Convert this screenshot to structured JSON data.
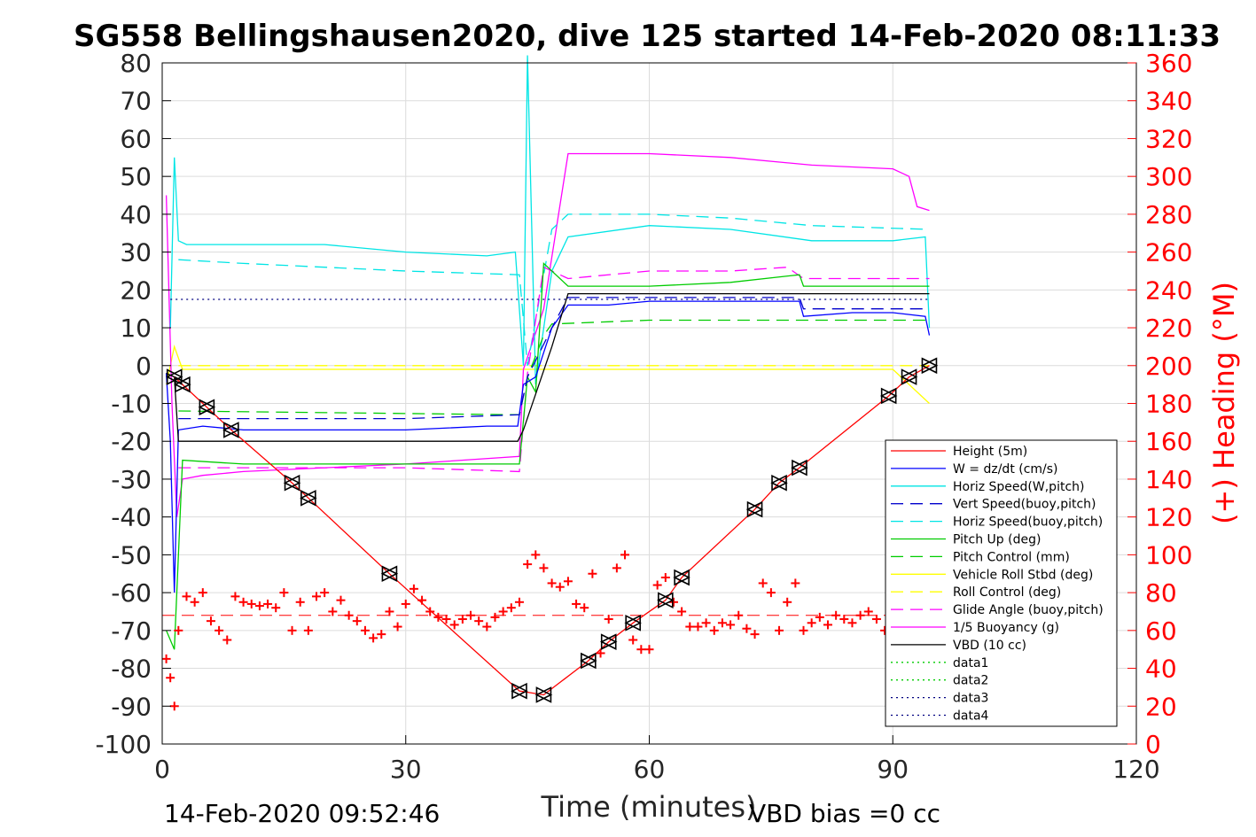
{
  "chart_data": {
    "type": "line",
    "title": "SG558 Bellingshausen2020, dive 125 started 14-Feb-2020 08:11:33",
    "xlabel": "Time (minutes)",
    "ylabel": "",
    "y2label": "(+) Heading (°M)",
    "xlim": [
      0,
      120
    ],
    "ylim": [
      -100,
      80
    ],
    "y2lim": [
      0,
      360
    ],
    "x_ticks": [
      "0",
      "30",
      "60",
      "90",
      "120"
    ],
    "y_ticks": [
      "80",
      "70",
      "60",
      "50",
      "40",
      "30",
      "20",
      "10",
      "0",
      "-10",
      "-20",
      "-30",
      "-40",
      "-50",
      "-60",
      "-70",
      "-80",
      "-90",
      "-100"
    ],
    "y2_ticks": [
      "360",
      "340",
      "320",
      "300",
      "280",
      "260",
      "240",
      "220",
      "200",
      "180",
      "160",
      "140",
      "120",
      "100",
      "80",
      "60",
      "40",
      "20",
      "0"
    ],
    "grid": true,
    "legend_position": "bottom-right",
    "footer_left": "14-Feb-2020 09:52:46",
    "footer_right": "VBD bias =0 cc",
    "colors": {
      "axis": "#000000",
      "right_axis": "#ff0000",
      "grid": "#dcdcdc"
    },
    "series": [
      {
        "name": "Height (5m)",
        "color": "#ff0000",
        "style": "solid",
        "x": [
          1.5,
          2.5,
          5.5,
          8.5,
          16,
          18,
          28,
          44,
          47,
          52.5,
          55,
          58,
          62,
          64,
          73,
          76,
          78.5,
          89.5,
          92,
          94.5
        ],
        "y": [
          -3,
          -5,
          -11,
          -17,
          -31,
          -35,
          -55,
          -86,
          -87,
          -78,
          -73,
          -68,
          -62,
          -56,
          -38,
          -31,
          -27,
          -8,
          -3,
          0
        ]
      },
      {
        "name": "W = dz/dt (cm/s)",
        "color": "#0000ff",
        "style": "solid",
        "x": [
          0.5,
          1,
          1.5,
          2,
          5,
          10,
          20,
          30,
          40,
          43.8,
          44.5,
          46,
          48,
          50,
          55,
          60,
          70,
          78.5,
          79,
          85,
          90,
          94,
          94.5
        ],
        "y": [
          -2,
          -20,
          -60,
          -17,
          -16,
          -17,
          -17,
          -17,
          -16,
          -16,
          -5,
          -3,
          10,
          16,
          16,
          17,
          17,
          17,
          13,
          14,
          14,
          13,
          8
        ]
      },
      {
        "name": "Horiz Speed(W,pitch)",
        "color": "#00e5e5",
        "style": "solid",
        "x": [
          1,
          1.5,
          2,
          3,
          10,
          20,
          30,
          40,
          43.5,
          44.5,
          45,
          46,
          48,
          50,
          60,
          70,
          80,
          90,
          94,
          94.5
        ],
        "y": [
          10,
          55,
          33,
          32,
          32,
          32,
          30,
          29,
          30,
          0,
          82,
          -5,
          25,
          34,
          37,
          36,
          33,
          33,
          34,
          10
        ]
      },
      {
        "name": "Vert Speed(buoy,pitch)",
        "color": "#0000cc",
        "style": "dashed",
        "x": [
          2,
          10,
          30,
          44,
          45,
          48,
          50,
          60,
          78.5,
          79,
          94.5
        ],
        "y": [
          -14,
          -14,
          -14,
          -13,
          -3,
          10,
          18,
          18,
          18,
          15,
          15
        ]
      },
      {
        "name": "Horiz Speed(buoy,pitch)",
        "color": "#00e5e5",
        "style": "dashed",
        "x": [
          2,
          10,
          20,
          30,
          44,
          45,
          48,
          50,
          60,
          70,
          80,
          94.5
        ],
        "y": [
          28,
          27,
          26,
          25,
          24,
          0,
          36,
          40,
          40,
          39,
          37,
          36
        ]
      },
      {
        "name": "Pitch Up (deg)",
        "color": "#00cc00",
        "style": "solid",
        "x": [
          0.5,
          1.5,
          2.5,
          10,
          20,
          30,
          44,
          45,
          46,
          47,
          50,
          60,
          70,
          78.5,
          79,
          94.5
        ],
        "y": [
          -70,
          -75,
          -25,
          -26,
          -26,
          -26,
          -26,
          -3,
          -7,
          27,
          21,
          21,
          22,
          24,
          21,
          21
        ]
      },
      {
        "name": "Pitch Control (mm)",
        "color": "#00cc00",
        "style": "dashed",
        "x": [
          2,
          44,
          45,
          47,
          48,
          60,
          94.5
        ],
        "y": [
          -12,
          -13,
          -3,
          8,
          11,
          12,
          12
        ]
      },
      {
        "name": "Vehicle Roll Stbd (deg)",
        "color": "#ffff00",
        "style": "solid",
        "x": [
          0.5,
          1.5,
          2.5,
          10,
          20,
          30,
          40,
          44,
          50,
          60,
          70,
          80,
          90,
          94.5
        ],
        "y": [
          -5,
          5,
          -1,
          -1,
          -1,
          -1,
          -1,
          -1,
          -1,
          -1,
          -1,
          -1,
          -1,
          -10
        ]
      },
      {
        "name": "Roll Control (deg)",
        "color": "#ffff00",
        "style": "dashed",
        "x": [
          2,
          30,
          44,
          45,
          60,
          94.5
        ],
        "y": [
          0,
          0,
          0,
          0,
          0,
          0
        ]
      },
      {
        "name": "Glide Angle (buoy,pitch)",
        "color": "#ff00ff",
        "style": "dashed",
        "x": [
          2,
          10,
          30,
          44,
          45,
          47,
          50,
          60,
          70,
          77,
          79,
          94.5
        ],
        "y": [
          -27,
          -27,
          -27,
          -28,
          -2,
          26,
          23,
          25,
          25,
          26,
          23,
          23
        ]
      },
      {
        "name": "1/5 Buoyancy (g)",
        "color": "#ff00ff",
        "style": "solid",
        "x": [
          0.5,
          1.2,
          1.8,
          2.5,
          5,
          10,
          20,
          30,
          44,
          44.5,
          47,
          50,
          60,
          70,
          80,
          90,
          92,
          93,
          94.5
        ],
        "y": [
          45,
          -10,
          -40,
          -30,
          -29,
          -28,
          -27,
          -26,
          -24,
          -1,
          15,
          56,
          56,
          55,
          53,
          52,
          50,
          42,
          41
        ]
      },
      {
        "name": "VBD (10 cc)",
        "color": "#000000",
        "style": "solid",
        "x": [
          0.5,
          1.5,
          2,
          43.8,
          44.5,
          48,
          50,
          60,
          94.5
        ],
        "y": [
          -2,
          -3,
          -20,
          -20,
          -17,
          5,
          19,
          19,
          19
        ]
      },
      {
        "name": "data1",
        "color": "#00cc00",
        "style": "dotted",
        "x": [],
        "y": []
      },
      {
        "name": "data2",
        "color": "#00cc00",
        "style": "dotted",
        "x": [],
        "y": []
      },
      {
        "name": "data3",
        "color": "#000080",
        "style": "dotted",
        "x": [
          1,
          94.5
        ],
        "y": [
          17.5,
          17.5
        ]
      },
      {
        "name": "data4",
        "color": "#000080",
        "style": "dotted",
        "x": [
          1,
          94.5
        ],
        "y": [
          -17.5,
          -17.5
        ]
      }
    ],
    "heading_series": {
      "color": "#ff0000",
      "marker": "+",
      "x": [
        0.5,
        1,
        1.5,
        2,
        3,
        4,
        5,
        6,
        7,
        8,
        9,
        10,
        11,
        12,
        13,
        14,
        15,
        16,
        17,
        18,
        19,
        20,
        21,
        22,
        23,
        24,
        25,
        26,
        27,
        28,
        29,
        30,
        31,
        32,
        33,
        34,
        35,
        36,
        37,
        38,
        39,
        40,
        41,
        42,
        43,
        44,
        45,
        46,
        47,
        48,
        49,
        50,
        51,
        52,
        53,
        54,
        55,
        56,
        57,
        58,
        59,
        60,
        61,
        62,
        63,
        64,
        65,
        66,
        67,
        68,
        69,
        70,
        71,
        72,
        73,
        74,
        75,
        76,
        77,
        78,
        79,
        80,
        81,
        82,
        83,
        84,
        85,
        86,
        87,
        88,
        89,
        90
      ],
      "y": [
        45,
        35,
        20,
        60,
        78,
        75,
        80,
        65,
        60,
        55,
        78,
        75,
        74,
        73,
        74,
        72,
        80,
        60,
        75,
        60,
        78,
        80,
        70,
        76,
        68,
        65,
        60,
        56,
        58,
        70,
        62,
        74,
        82,
        76,
        70,
        67,
        66,
        63,
        66,
        68,
        65,
        62,
        67,
        70,
        72,
        75,
        95,
        100,
        93,
        85,
        83,
        86,
        74,
        72,
        90,
        48,
        66,
        93,
        100,
        55,
        50,
        50,
        84,
        88,
        75,
        70,
        62,
        62,
        64,
        60,
        64,
        63,
        68,
        61,
        58,
        85,
        80,
        60,
        75,
        85,
        60,
        64,
        67,
        63,
        68,
        66,
        64,
        68,
        70,
        66,
        60,
        45
      ]
    },
    "heading_mean": {
      "color": "#ff0000",
      "style": "dashed",
      "value": 68
    }
  }
}
